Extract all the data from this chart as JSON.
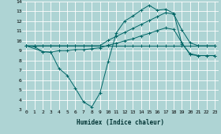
{
  "xlabel": "Humidex (Indice chaleur)",
  "xlim": [
    -0.5,
    23.5
  ],
  "ylim": [
    3,
    14
  ],
  "xticks": [
    0,
    1,
    2,
    3,
    4,
    5,
    6,
    7,
    8,
    9,
    10,
    11,
    12,
    13,
    14,
    15,
    16,
    17,
    18,
    19,
    20,
    21,
    22,
    23
  ],
  "yticks": [
    3,
    4,
    5,
    6,
    7,
    8,
    9,
    10,
    11,
    12,
    13,
    14
  ],
  "bg_color": "#aed4d4",
  "grid_color": "#ffffff",
  "line_color": "#006666",
  "line1_x": [
    0,
    1,
    2,
    3,
    4,
    5,
    6,
    7,
    8,
    9,
    10,
    11,
    12,
    13,
    14,
    15,
    16,
    17,
    18,
    19,
    20,
    21,
    22,
    23
  ],
  "line1_y": [
    9.5,
    9.5,
    9.5,
    9.5,
    9.5,
    9.5,
    9.5,
    9.5,
    9.5,
    9.5,
    9.5,
    9.5,
    9.5,
    9.5,
    9.5,
    9.5,
    9.5,
    9.5,
    9.5,
    9.5,
    9.5,
    9.5,
    9.5,
    9.5
  ],
  "line2_x": [
    0,
    1,
    2,
    3,
    4,
    5,
    6,
    7,
    8,
    9,
    10,
    11,
    12,
    13,
    14,
    15,
    16,
    17,
    18,
    19,
    20,
    21,
    22,
    23
  ],
  "line2_y": [
    9.5,
    9.4,
    8.9,
    8.85,
    9.0,
    9.0,
    9.1,
    9.1,
    9.2,
    9.3,
    9.55,
    9.75,
    10.0,
    10.2,
    10.5,
    10.75,
    11.05,
    11.3,
    11.15,
    9.8,
    8.6,
    8.5,
    8.5,
    8.5
  ],
  "line3_x": [
    0,
    2,
    3,
    4,
    5,
    6,
    7,
    8,
    9,
    10,
    11,
    12,
    13,
    14,
    15,
    16,
    17,
    18,
    19,
    20,
    21,
    22,
    23
  ],
  "line3_y": [
    9.5,
    8.9,
    8.85,
    7.2,
    6.5,
    5.2,
    3.8,
    3.3,
    4.7,
    7.9,
    10.8,
    12.0,
    12.5,
    13.1,
    13.6,
    13.1,
    13.2,
    12.8,
    9.7,
    8.7,
    8.5,
    8.5,
    8.5
  ],
  "line4_x": [
    0,
    1,
    2,
    3,
    4,
    5,
    6,
    7,
    8,
    9,
    10,
    11,
    12,
    13,
    14,
    15,
    16,
    17,
    18,
    19,
    20,
    21,
    22,
    23
  ],
  "line4_y": [
    9.5,
    9.5,
    9.5,
    9.5,
    9.5,
    9.5,
    9.5,
    9.5,
    9.5,
    9.5,
    10.05,
    10.45,
    10.85,
    11.25,
    11.65,
    12.05,
    12.45,
    12.85,
    12.7,
    11.1,
    9.8,
    9.5,
    9.5,
    9.5
  ]
}
